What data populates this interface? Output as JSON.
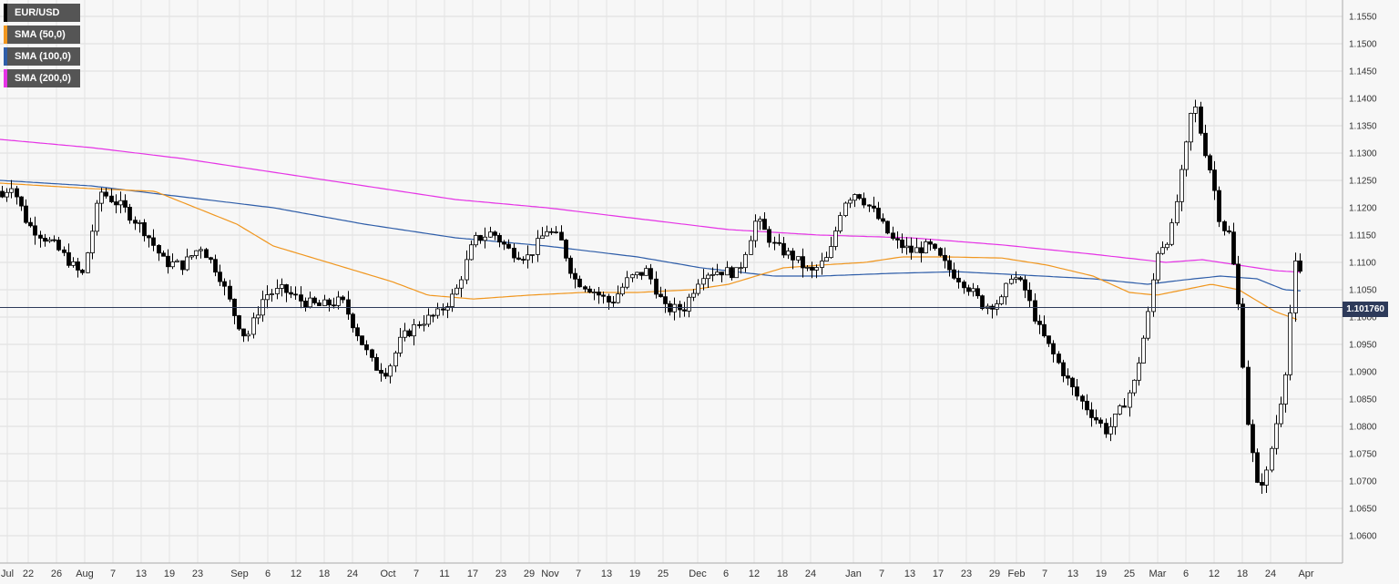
{
  "chart_data": {
    "type": "candlestick",
    "title": "",
    "xlabel": "",
    "ylabel": "",
    "ylim": [
      1.056,
      1.158
    ],
    "grid": true,
    "legend_position": "top-left",
    "y_ticks": [
      "1.1550",
      "1.1500",
      "1.1450",
      "1.1400",
      "1.1350",
      "1.1300",
      "1.1250",
      "1.1200",
      "1.1150",
      "1.1100",
      "1.1050",
      "1.1000",
      "1.0950",
      "1.0900",
      "1.0850",
      "1.0800",
      "1.0750",
      "1.0700",
      "1.0650",
      "1.0600"
    ],
    "x_ticks": [
      "Jul",
      "22",
      "26",
      "Aug",
      "7",
      "13",
      "19",
      "23",
      "Sep",
      "6",
      "12",
      "18",
      "24",
      "Oct",
      "7",
      "11",
      "17",
      "23",
      "29",
      "Nov",
      "7",
      "13",
      "19",
      "25",
      "Dec",
      "6",
      "12",
      "18",
      "24",
      "Jan",
      "7",
      "13",
      "17",
      "23",
      "29",
      "Feb",
      "7",
      "13",
      "19",
      "25",
      "Mar",
      "6",
      "12",
      "18",
      "24",
      "Apr"
    ],
    "series": [
      {
        "name": "EUR/USD",
        "color": "#000000"
      },
      {
        "name": "SMA (50,0)",
        "color": "#f0961e"
      },
      {
        "name": "SMA (100,0)",
        "color": "#2e5da8"
      },
      {
        "name": "SMA (200,0)",
        "color": "#e533e5"
      }
    ],
    "last_price": "1.101760",
    "close_anchors": [
      [
        0,
        1.1215
      ],
      [
        12,
        1.1245
      ],
      [
        30,
        1.117
      ],
      [
        60,
        1.113
      ],
      [
        90,
        1.1075
      ],
      [
        110,
        1.123
      ],
      [
        135,
        1.12
      ],
      [
        160,
        1.1155
      ],
      [
        180,
        1.11
      ],
      [
        200,
        1.1095
      ],
      [
        220,
        1.113
      ],
      [
        240,
        1.108
      ],
      [
        258,
        1.1
      ],
      [
        270,
        1.096
      ],
      [
        290,
        1.104
      ],
      [
        310,
        1.105
      ],
      [
        330,
        1.103
      ],
      [
        350,
        1.102
      ],
      [
        375,
        1.103
      ],
      [
        395,
        1.096
      ],
      [
        410,
        1.091
      ],
      [
        425,
        1.09
      ],
      [
        440,
        1.096
      ],
      [
        460,
        1.099
      ],
      [
        480,
        1.1005
      ],
      [
        500,
        1.1045
      ],
      [
        520,
        1.114
      ],
      [
        540,
        1.1155
      ],
      [
        560,
        1.112
      ],
      [
        580,
        1.111
      ],
      [
        600,
        1.116
      ],
      [
        615,
        1.114
      ],
      [
        630,
        1.107
      ],
      [
        650,
        1.105
      ],
      [
        670,
        1.1025
      ],
      [
        690,
        1.107
      ],
      [
        710,
        1.1085
      ],
      [
        730,
        1.1015
      ],
      [
        750,
        1.1015
      ],
      [
        770,
        1.108
      ],
      [
        790,
        1.1085
      ],
      [
        810,
        1.108
      ],
      [
        830,
        1.118
      ],
      [
        850,
        1.113
      ],
      [
        870,
        1.111
      ],
      [
        890,
        1.108
      ],
      [
        910,
        1.111
      ],
      [
        925,
        1.121
      ],
      [
        940,
        1.123
      ],
      [
        960,
        1.119
      ],
      [
        980,
        1.114
      ],
      [
        1000,
        1.112
      ],
      [
        1020,
        1.113
      ],
      [
        1040,
        1.109
      ],
      [
        1060,
        1.106
      ],
      [
        1080,
        1.102
      ],
      [
        1100,
        1.103
      ],
      [
        1110,
        1.108
      ],
      [
        1125,
        1.105
      ],
      [
        1140,
        1.098
      ],
      [
        1160,
        1.092
      ],
      [
        1180,
        1.086
      ],
      [
        1200,
        1.082
      ],
      [
        1215,
        1.079
      ],
      [
        1230,
        1.083
      ],
      [
        1245,
        1.088
      ],
      [
        1260,
        1.1
      ],
      [
        1270,
        1.112
      ],
      [
        1285,
        1.115
      ],
      [
        1300,
        1.129
      ],
      [
        1310,
        1.14
      ],
      [
        1320,
        1.132
      ],
      [
        1330,
        1.126
      ],
      [
        1340,
        1.117
      ],
      [
        1350,
        1.115
      ],
      [
        1360,
        1.101
      ],
      [
        1370,
        1.08
      ],
      [
        1380,
        1.069
      ],
      [
        1390,
        1.071
      ],
      [
        1400,
        1.08
      ],
      [
        1410,
        1.088
      ],
      [
        1418,
        1.104
      ],
      [
        1424,
        1.113
      ],
      [
        1430,
        1.1018
      ]
    ],
    "sma50_anchors": [
      [
        0,
        1.1245
      ],
      [
        100,
        1.1235
      ],
      [
        170,
        1.123
      ],
      [
        260,
        1.117
      ],
      [
        300,
        1.113
      ],
      [
        360,
        1.11
      ],
      [
        430,
        1.1065
      ],
      [
        470,
        1.104
      ],
      [
        520,
        1.1033
      ],
      [
        580,
        1.104
      ],
      [
        640,
        1.1045
      ],
      [
        700,
        1.1045
      ],
      [
        760,
        1.105
      ],
      [
        800,
        1.106
      ],
      [
        860,
        1.109
      ],
      [
        900,
        1.1095
      ],
      [
        950,
        1.11
      ],
      [
        990,
        1.111
      ],
      [
        1040,
        1.111
      ],
      [
        1100,
        1.1108
      ],
      [
        1150,
        1.1095
      ],
      [
        1200,
        1.1075
      ],
      [
        1240,
        1.1045
      ],
      [
        1270,
        1.104
      ],
      [
        1300,
        1.105
      ],
      [
        1330,
        1.106
      ],
      [
        1360,
        1.105
      ],
      [
        1400,
        1.101
      ],
      [
        1425,
        1.0995
      ]
    ],
    "sma100_anchors": [
      [
        0,
        1.125
      ],
      [
        100,
        1.124
      ],
      [
        200,
        1.122
      ],
      [
        300,
        1.12
      ],
      [
        400,
        1.117
      ],
      [
        500,
        1.1145
      ],
      [
        600,
        1.113
      ],
      [
        700,
        1.111
      ],
      [
        770,
        1.109
      ],
      [
        850,
        1.1075
      ],
      [
        900,
        1.1075
      ],
      [
        980,
        1.108
      ],
      [
        1050,
        1.1083
      ],
      [
        1110,
        1.1078
      ],
      [
        1200,
        1.107
      ],
      [
        1260,
        1.106
      ],
      [
        1300,
        1.1068
      ],
      [
        1340,
        1.1075
      ],
      [
        1380,
        1.107
      ],
      [
        1410,
        1.105
      ],
      [
        1428,
        1.1048
      ]
    ],
    "sma200_anchors": [
      [
        0,
        1.1325
      ],
      [
        100,
        1.131
      ],
      [
        200,
        1.129
      ],
      [
        300,
        1.1265
      ],
      [
        400,
        1.124
      ],
      [
        500,
        1.1215
      ],
      [
        600,
        1.12
      ],
      [
        700,
        1.118
      ],
      [
        800,
        1.116
      ],
      [
        900,
        1.115
      ],
      [
        1000,
        1.1145
      ],
      [
        1100,
        1.1132
      ],
      [
        1200,
        1.1115
      ],
      [
        1280,
        1.11
      ],
      [
        1320,
        1.1105
      ],
      [
        1360,
        1.1095
      ],
      [
        1400,
        1.1085
      ],
      [
        1428,
        1.1082
      ]
    ]
  }
}
